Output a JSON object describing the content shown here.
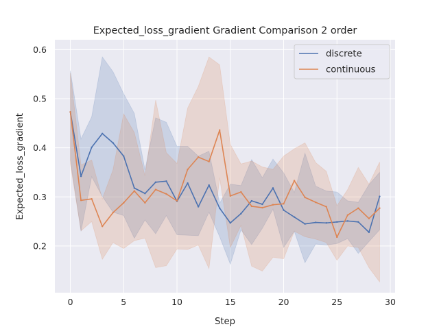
{
  "chart_data": {
    "type": "line",
    "title": "Expected_loss_gradient Gradient Comparison 2 order",
    "xlabel": "Step",
    "ylabel": "Expected_loss_gradient",
    "xlim": [
      -1.45,
      30.45
    ],
    "ylim": [
      0.105,
      0.62
    ],
    "xticks": [
      0,
      5,
      10,
      15,
      20,
      25,
      30
    ],
    "yticks": [
      0.2,
      0.3,
      0.4,
      0.5,
      0.6
    ],
    "grid": true,
    "legend": "top-right",
    "x": [
      0,
      1,
      2,
      3,
      4,
      5,
      6,
      7,
      8,
      9,
      10,
      11,
      12,
      13,
      14,
      15,
      16,
      17,
      18,
      19,
      20,
      21,
      22,
      23,
      24,
      25,
      26,
      27,
      28,
      29
    ],
    "series": [
      {
        "name": "discrete",
        "color": "#4c72b0",
        "values": [
          0.473,
          0.342,
          0.401,
          0.429,
          0.41,
          0.383,
          0.318,
          0.307,
          0.33,
          0.332,
          0.291,
          0.328,
          0.28,
          0.324,
          0.277,
          0.247,
          0.266,
          0.292,
          0.285,
          0.318,
          0.273,
          0.259,
          0.245,
          0.248,
          0.247,
          0.249,
          0.251,
          0.249,
          0.228,
          0.301
        ],
        "upper": [
          0.557,
          0.418,
          0.463,
          0.585,
          0.555,
          0.51,
          0.47,
          0.355,
          0.461,
          0.452,
          0.403,
          0.403,
          0.383,
          0.393,
          0.287,
          0.326,
          0.323,
          0.376,
          0.339,
          0.377,
          0.349,
          0.309,
          0.389,
          0.322,
          0.312,
          0.31,
          0.292,
          0.289,
          0.325,
          0.35
        ],
        "lower": [
          0.375,
          0.23,
          0.341,
          0.301,
          0.269,
          0.262,
          0.216,
          0.253,
          0.225,
          0.262,
          0.223,
          0.222,
          0.221,
          0.269,
          0.219,
          0.163,
          0.233,
          0.203,
          0.236,
          0.275,
          0.197,
          0.23,
          0.166,
          0.204,
          0.202,
          0.205,
          0.215,
          0.185,
          0.209,
          0.233
        ]
      },
      {
        "name": "continuous",
        "color": "#dd8452",
        "values": [
          0.473,
          0.293,
          0.296,
          0.24,
          0.268,
          0.288,
          0.312,
          0.288,
          0.315,
          0.306,
          0.292,
          0.356,
          0.381,
          0.372,
          0.436,
          0.302,
          0.31,
          0.281,
          0.278,
          0.284,
          0.286,
          0.333,
          0.299,
          0.289,
          0.28,
          0.218,
          0.263,
          0.277,
          0.256,
          0.277
        ],
        "upper": [
          0.553,
          0.365,
          0.375,
          0.296,
          0.355,
          0.469,
          0.431,
          0.343,
          0.497,
          0.39,
          0.368,
          0.481,
          0.525,
          0.585,
          0.569,
          0.407,
          0.367,
          0.373,
          0.361,
          0.356,
          0.383,
          0.398,
          0.41,
          0.37,
          0.352,
          0.282,
          0.315,
          0.36,
          0.326,
          0.371
        ],
        "lower": [
          0.367,
          0.231,
          0.25,
          0.173,
          0.207,
          0.195,
          0.211,
          0.216,
          0.156,
          0.16,
          0.194,
          0.193,
          0.202,
          0.154,
          0.339,
          0.197,
          0.242,
          0.159,
          0.149,
          0.177,
          0.174,
          0.23,
          0.219,
          0.214,
          0.207,
          0.171,
          0.2,
          0.197,
          0.156,
          0.127
        ]
      }
    ]
  }
}
